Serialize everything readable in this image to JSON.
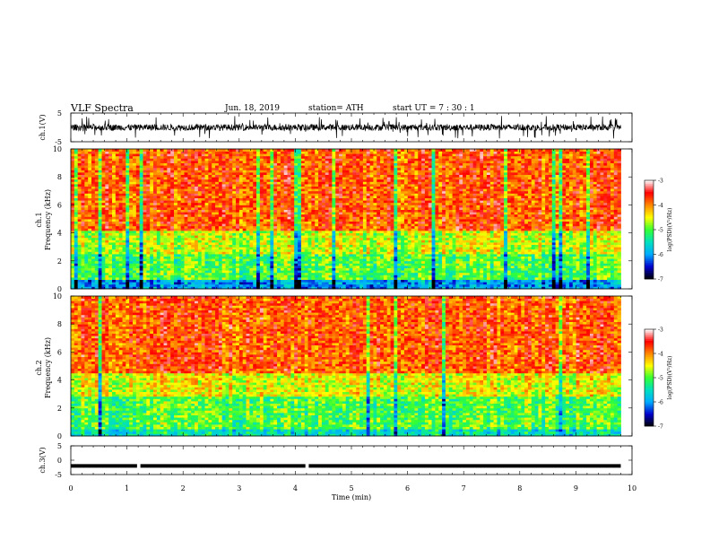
{
  "header": {
    "title": "VLF  Spectra",
    "date": "Jun. 18, 2019",
    "station": "station= ATH",
    "start": "start  UT  =    7  : 30 : 1"
  },
  "chart_data": [
    {
      "type": "line",
      "panel": "ch1-waveform",
      "ylabel": "ch.1(V)",
      "ylim": [
        -5,
        5
      ],
      "y_ticks": [
        "5",
        "-5"
      ],
      "x_range_min": [
        0,
        9.8
      ],
      "amplitude_note": "noisy waveform centered near 0 V, spikes up to about ±4 V"
    },
    {
      "type": "heatmap",
      "panel": "ch1-spectrogram",
      "ylabel_line1": "ch.1",
      "ylabel_line2": "Frequency  (kHz)",
      "ylim": [
        0,
        10
      ],
      "y_ticks": [
        "0",
        "2",
        "4",
        "6",
        "8",
        "10"
      ],
      "x_range_min": [
        0,
        9.8
      ],
      "log_psd_by_band": [
        {
          "freq_khz": [
            0,
            0.7
          ],
          "log_psd": -6.0
        },
        {
          "freq_khz": [
            0.7,
            2.5
          ],
          "log_psd": -5.0
        },
        {
          "freq_khz": [
            2.5,
            4.2
          ],
          "log_psd": -4.6
        },
        {
          "freq_khz": [
            4.2,
            10
          ],
          "log_psd": -3.8
        }
      ]
    },
    {
      "type": "heatmap",
      "panel": "ch2-spectrogram",
      "ylabel_line1": "ch.2",
      "ylabel_line2": "Frequency  (kHz)",
      "ylim": [
        0,
        10
      ],
      "y_ticks": [
        "0",
        "2",
        "4",
        "6",
        "8",
        "10"
      ],
      "x_range_min": [
        0,
        9.8
      ],
      "log_psd_by_band": [
        {
          "freq_khz": [
            0,
            0.5
          ],
          "log_psd": -5.5
        },
        {
          "freq_khz": [
            0.5,
            2.8
          ],
          "log_psd": -5.0
        },
        {
          "freq_khz": [
            2.8,
            4.5
          ],
          "log_psd": -4.5
        },
        {
          "freq_khz": [
            4.5,
            10
          ],
          "log_psd": -3.8
        }
      ]
    },
    {
      "type": "line",
      "panel": "ch3-waveform",
      "ylabel": "ch.3(V)",
      "ylim": [
        -5,
        5
      ],
      "y_ticks": [
        "5",
        "0",
        "-5"
      ],
      "x_range_min": [
        0,
        9.8
      ],
      "level_v": -2,
      "gaps_min": [
        1.2,
        4.2
      ]
    }
  ],
  "x_axis": {
    "label": "Time  (min)",
    "range": [
      0,
      10
    ],
    "ticks": [
      "0",
      "1",
      "2",
      "3",
      "4",
      "5",
      "6",
      "7",
      "8",
      "9",
      "10"
    ]
  },
  "colorbar": {
    "label": "log(PSD)(V²/Hz)",
    "range": [
      -7,
      -3
    ],
    "ticks": [
      "-3",
      "-4",
      "-5",
      "-6",
      "-7"
    ],
    "colors": [
      "#000000",
      "#0000cc",
      "#00aaff",
      "#00e0c0",
      "#33ff33",
      "#ffff00",
      "#ff8800",
      "#ff0000",
      "#ffffff"
    ]
  }
}
